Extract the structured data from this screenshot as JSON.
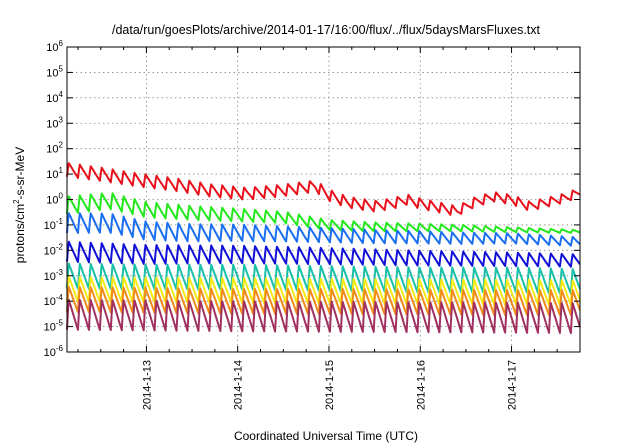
{
  "chart_data": {
    "type": "line",
    "title": "/data/run/goesPlots/archive/2014-01-17/16:00/flux/../flux/5daysMarsFluxes.txt",
    "xlabel": "Coordinated Universal Time (UTC)",
    "ylabel_main": "protons/cm",
    "ylabel_sup": "2",
    "ylabel_tail": "-s-sr-MeV",
    "ylim": [
      1e-06,
      1000000.0
    ],
    "yscale": "log",
    "xlim_days": [
      12.13,
      17.75
    ],
    "yticks": [
      {
        "exp": -6,
        "base": "10",
        "sup": "-6"
      },
      {
        "exp": -5,
        "base": "10",
        "sup": "-5"
      },
      {
        "exp": -4,
        "base": "10",
        "sup": "-4"
      },
      {
        "exp": -3,
        "base": "10",
        "sup": "-3"
      },
      {
        "exp": -2,
        "base": "10",
        "sup": "-2"
      },
      {
        "exp": -1,
        "base": "10",
        "sup": "-1"
      },
      {
        "exp": 0,
        "base": "10",
        "sup": "0"
      },
      {
        "exp": 1,
        "base": "10",
        "sup": "1"
      },
      {
        "exp": 2,
        "base": "10",
        "sup": "2"
      },
      {
        "exp": 3,
        "base": "10",
        "sup": "3"
      },
      {
        "exp": 4,
        "base": "10",
        "sup": "4"
      },
      {
        "exp": 5,
        "base": "10",
        "sup": "5"
      },
      {
        "exp": 6,
        "base": "10",
        "sup": "6"
      }
    ],
    "xticks": [
      {
        "day": 13,
        "label": "2014-1-13"
      },
      {
        "day": 14,
        "label": "2014-1-14"
      },
      {
        "day": 15,
        "label": "2014-1-15"
      },
      {
        "day": 16,
        "label": "2014-1-16"
      },
      {
        "day": 17,
        "label": "2014-1-17"
      }
    ],
    "grid": true,
    "series": [
      {
        "color": "#e8101a",
        "kind": "smooth",
        "points": [
          [
            12.13,
            15
          ],
          [
            12.5,
            10
          ],
          [
            12.9,
            6
          ],
          [
            13.3,
            4
          ],
          [
            13.7,
            2.3
          ],
          [
            14.1,
            1.7
          ],
          [
            14.5,
            2.3
          ],
          [
            14.85,
            3.4
          ],
          [
            15.0,
            1.5
          ],
          [
            15.2,
            0.8
          ],
          [
            15.5,
            0.55
          ],
          [
            15.7,
            0.7
          ],
          [
            15.85,
            1.0
          ],
          [
            16.0,
            0.7
          ],
          [
            16.2,
            0.5
          ],
          [
            16.4,
            0.35
          ],
          [
            16.6,
            0.8
          ],
          [
            16.8,
            1.3
          ],
          [
            17.0,
            1.0
          ],
          [
            17.2,
            0.55
          ],
          [
            17.4,
            0.8
          ],
          [
            17.6,
            1.2
          ],
          [
            17.75,
            2.0
          ]
        ],
        "amp": 0.55,
        "period": 0.12,
        "amp_end": 0.35
      },
      {
        "color": "#22e81c",
        "kind": "smooth",
        "points": [
          [
            12.13,
            0.6
          ],
          [
            12.6,
            0.9
          ],
          [
            13.0,
            0.4
          ],
          [
            13.5,
            0.3
          ],
          [
            14.0,
            0.25
          ],
          [
            14.5,
            0.2
          ],
          [
            15.0,
            0.1
          ],
          [
            15.5,
            0.085
          ],
          [
            16.0,
            0.08
          ],
          [
            16.5,
            0.075
          ],
          [
            17.0,
            0.065
          ],
          [
            17.75,
            0.055
          ]
        ],
        "amp": 0.7,
        "period": 0.12,
        "amp_end": 0.12
      },
      {
        "color": "#1a6ef0",
        "kind": "smooth",
        "points": [
          [
            12.13,
            0.12
          ],
          [
            12.6,
            0.12
          ],
          [
            13.0,
            0.06
          ],
          [
            13.5,
            0.05
          ],
          [
            14.0,
            0.05
          ],
          [
            14.5,
            0.045
          ],
          [
            15.0,
            0.04
          ],
          [
            15.5,
            0.035
          ],
          [
            16.0,
            0.033
          ],
          [
            16.5,
            0.03
          ],
          [
            17.0,
            0.03
          ],
          [
            17.75,
            0.022
          ]
        ],
        "amp": 0.8,
        "period": 0.12,
        "amp_end": 0.35
      },
      {
        "color": "#1010d8",
        "kind": "smooth",
        "points": [
          [
            12.13,
            0.009
          ],
          [
            13.0,
            0.007
          ],
          [
            14.0,
            0.007
          ],
          [
            15.0,
            0.006
          ],
          [
            16.0,
            0.005
          ],
          [
            17.0,
            0.0045
          ],
          [
            17.75,
            0.004
          ]
        ],
        "amp": 0.8,
        "period": 0.12,
        "amp_end": 0.5
      },
      {
        "color": "#19c0a8",
        "kind": "smooth",
        "points": [
          [
            12.13,
            0.001
          ],
          [
            13.0,
            0.0009
          ],
          [
            14.0,
            0.0009
          ],
          [
            15.0,
            0.0008
          ],
          [
            16.0,
            0.0007
          ],
          [
            17.0,
            0.0007
          ],
          [
            17.75,
            0.0006
          ]
        ],
        "amp": 1.0,
        "period": 0.12,
        "amp_end": 1.0
      },
      {
        "color": "#f5ea14",
        "kind": "smooth",
        "points": [
          [
            12.13,
            0.0003
          ],
          [
            13.0,
            0.00028
          ],
          [
            14.0,
            0.00027
          ],
          [
            15.0,
            0.00025
          ],
          [
            16.0,
            0.00024
          ],
          [
            17.0,
            0.00023
          ],
          [
            17.75,
            0.00022
          ]
        ],
        "amp": 1.0,
        "period": 0.12,
        "amp_end": 1.0
      },
      {
        "color": "#f08a18",
        "kind": "smooth",
        "points": [
          [
            12.13,
            0.00012
          ],
          [
            13.0,
            0.00011
          ],
          [
            14.0,
            0.0001
          ],
          [
            15.0,
            0.0001
          ],
          [
            16.0,
            9.5e-05
          ],
          [
            17.0,
            9e-05
          ],
          [
            17.75,
            9e-05
          ]
        ],
        "amp": 1.0,
        "period": 0.12,
        "amp_end": 1.0
      },
      {
        "color": "#a03060",
        "kind": "smooth",
        "points": [
          [
            12.13,
            3e-05
          ],
          [
            13.0,
            2.8e-05
          ],
          [
            14.0,
            2.6e-05
          ],
          [
            15.0,
            2.5e-05
          ],
          [
            16.0,
            2.4e-05
          ],
          [
            17.0,
            2.3e-05
          ],
          [
            17.75,
            2.2e-05
          ]
        ],
        "amp": 1.2,
        "period": 0.12,
        "amp_end": 1.2
      }
    ]
  }
}
